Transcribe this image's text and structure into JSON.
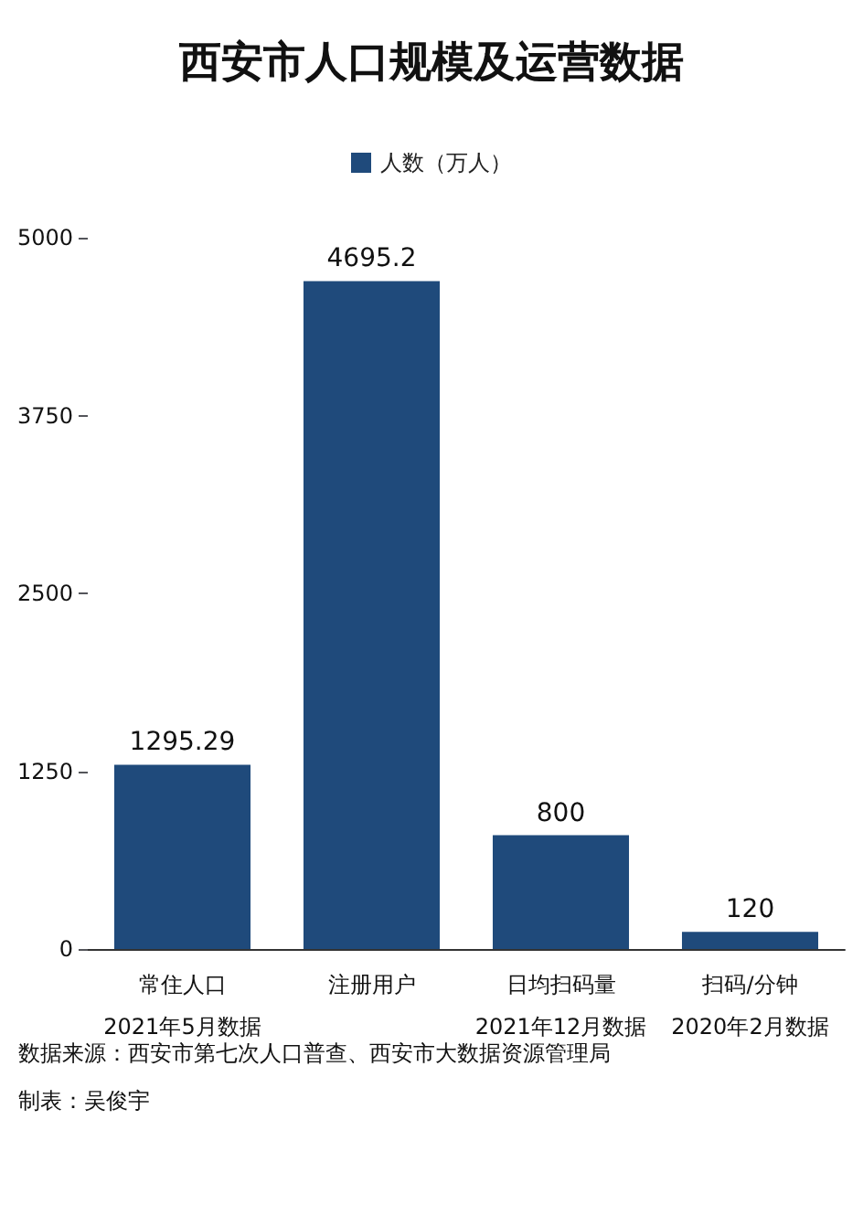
{
  "chart_data": {
    "type": "bar",
    "title": "西安市人口规模及运营数据",
    "categories": [
      "常住人口\n2021年5月数据",
      "注册用户",
      "日均扫码量\n2021年12月数据",
      "扫码/分钟\n2020年2月数据"
    ],
    "series": [
      {
        "name": "人数（万人）",
        "color": "#1f4a7b",
        "values": [
          1295.29,
          4695.2,
          800,
          120
        ]
      }
    ],
    "ylim": [
      0,
      5000
    ],
    "yticks": [
      0,
      1250,
      2500,
      3750,
      5000
    ],
    "grid": false,
    "legend": "top",
    "data_labels": true,
    "annotations": [
      "数据来源：西安市第七次人口普查、西安市大数据资源管理局",
      "制表：吴俊宇"
    ]
  }
}
